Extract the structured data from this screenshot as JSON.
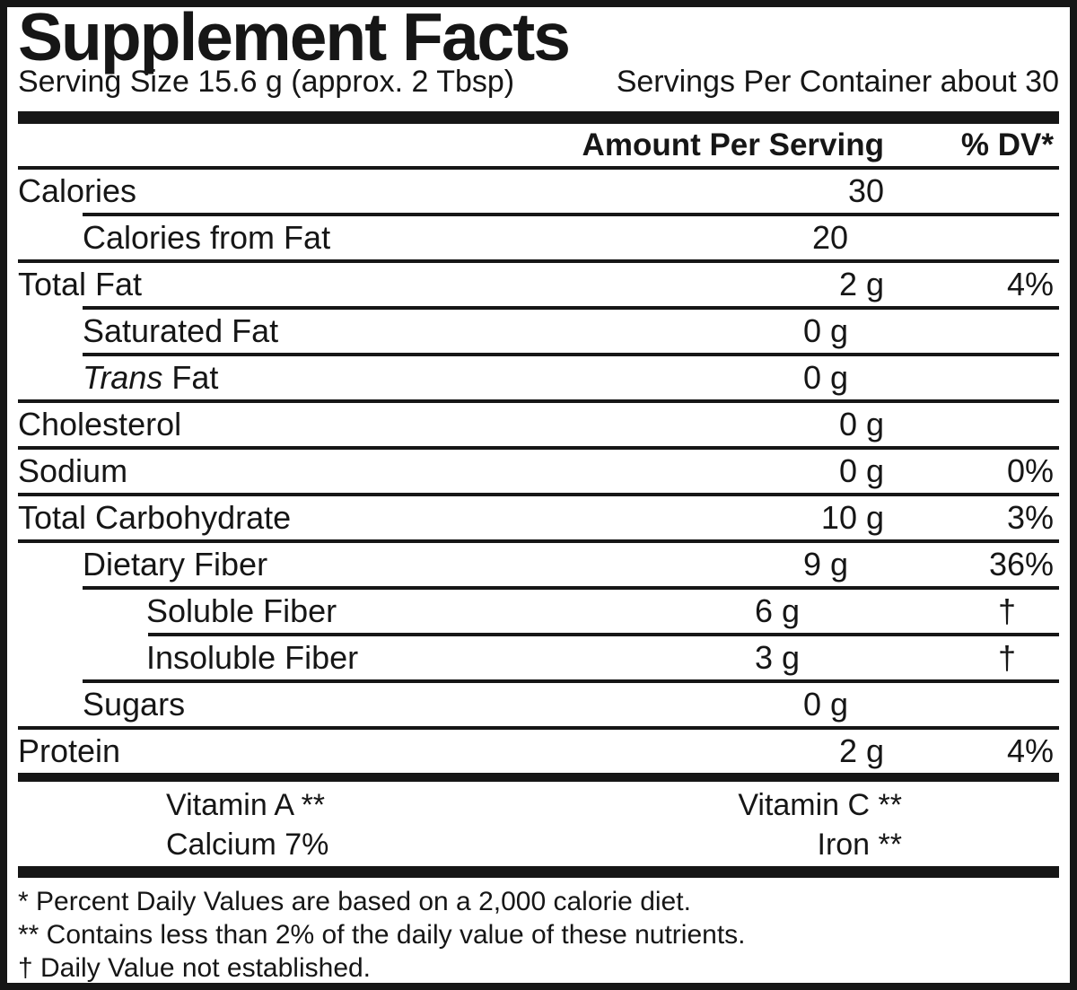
{
  "colors": {
    "ink": "#161616",
    "paper": "#ffffff"
  },
  "title": "Supplement Facts",
  "serving": {
    "size": "Serving Size 15.6 g (approx. 2 Tbsp)",
    "per_container": "Servings Per Container about 30"
  },
  "header": {
    "amount": "Amount Per Serving",
    "dv": "% DV*"
  },
  "rows": [
    {
      "label": "Calories",
      "amount": "30",
      "dv": "",
      "level": 0,
      "sep_level": 0
    },
    {
      "label": "Calories from Fat",
      "amount": "20",
      "dv": "",
      "level": 1,
      "sep_level": 1
    },
    {
      "label": "Total Fat",
      "amount": "2 g",
      "dv": "4%",
      "level": 0,
      "sep_level": 0
    },
    {
      "label": "Saturated Fat",
      "amount": "0 g",
      "dv": "",
      "level": 1,
      "sep_level": 1
    },
    {
      "label": "Trans Fat",
      "amount": "0 g",
      "dv": "",
      "level": 1,
      "sep_level": 1,
      "italic_prefix": "Trans"
    },
    {
      "label": "Cholesterol",
      "amount": "0 g",
      "dv": "",
      "level": 0,
      "sep_level": 0
    },
    {
      "label": "Sodium",
      "amount": "0 g",
      "dv": "0%",
      "level": 0,
      "sep_level": 0
    },
    {
      "label": "Total Carbohydrate",
      "amount": "10 g",
      "dv": "3%",
      "level": 0,
      "sep_level": 0
    },
    {
      "label": "Dietary Fiber",
      "amount": "9 g",
      "dv": "36%",
      "level": 1,
      "sep_level": 0
    },
    {
      "label": "Soluble Fiber",
      "amount": "6 g",
      "dv": "†",
      "level": 2,
      "sep_level": 1
    },
    {
      "label": "Insoluble Fiber",
      "amount": "3 g",
      "dv": "†",
      "level": 2,
      "sep_level": 2
    },
    {
      "label": "Sugars",
      "amount": "0 g",
      "dv": "",
      "level": 1,
      "sep_level": 1
    },
    {
      "label": "Protein",
      "amount": "2 g",
      "dv": "4%",
      "level": 0,
      "sep_level": 0
    }
  ],
  "vitamins": [
    {
      "left": "Vitamin A **",
      "right": "Vitamin C **"
    },
    {
      "left": "Calcium 7%",
      "right": "Iron **"
    }
  ],
  "footnotes": [
    "* Percent Daily Values are based on a 2,000 calorie diet.",
    "** Contains less than 2% of the daily value of these nutrients.",
    "† Daily Value not established."
  ]
}
